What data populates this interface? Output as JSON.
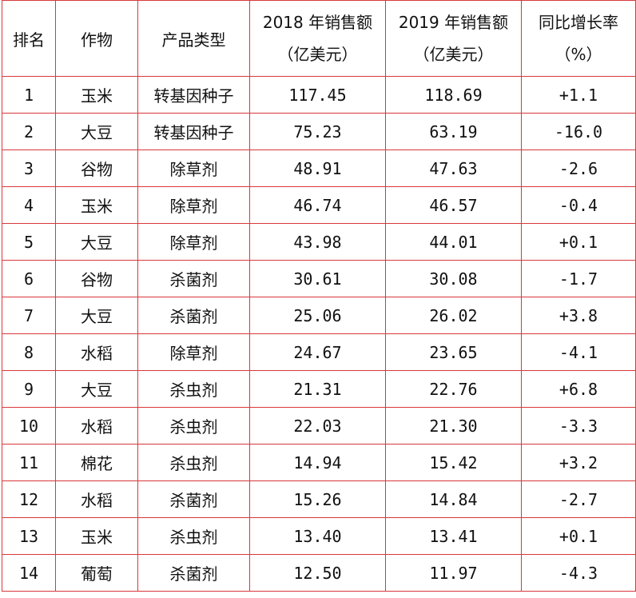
{
  "table": {
    "headers": {
      "rank": "排名",
      "crop": "作物",
      "product_type": "产品类型",
      "sales_2018_line1": "2018 年销售额",
      "sales_2018_line2": "（亿美元）",
      "sales_2019_line1": "2019 年销售额",
      "sales_2019_line2": "（亿美元）",
      "growth_line1": "同比增长率",
      "growth_line2": "（%）"
    },
    "rows": [
      {
        "rank": "1",
        "crop": "玉米",
        "type": "转基因种子",
        "s2018": "117.45",
        "s2019": "118.69",
        "growth": "+1.1"
      },
      {
        "rank": "2",
        "crop": "大豆",
        "type": "转基因种子",
        "s2018": "75.23",
        "s2019": "63.19",
        "growth": "-16.0"
      },
      {
        "rank": "3",
        "crop": "谷物",
        "type": "除草剂",
        "s2018": "48.91",
        "s2019": "47.63",
        "growth": "-2.6"
      },
      {
        "rank": "4",
        "crop": "玉米",
        "type": "除草剂",
        "s2018": "46.74",
        "s2019": "46.57",
        "growth": "-0.4"
      },
      {
        "rank": "5",
        "crop": "大豆",
        "type": "除草剂",
        "s2018": "43.98",
        "s2019": "44.01",
        "growth": "+0.1"
      },
      {
        "rank": "6",
        "crop": "谷物",
        "type": "杀菌剂",
        "s2018": "30.61",
        "s2019": "30.08",
        "growth": "-1.7"
      },
      {
        "rank": "7",
        "crop": "大豆",
        "type": "杀菌剂",
        "s2018": "25.06",
        "s2019": "26.02",
        "growth": "+3.8"
      },
      {
        "rank": "8",
        "crop": "水稻",
        "type": "除草剂",
        "s2018": "24.67",
        "s2019": "23.65",
        "growth": "-4.1"
      },
      {
        "rank": "9",
        "crop": "大豆",
        "type": "杀虫剂",
        "s2018": "21.31",
        "s2019": "22.76",
        "growth": "+6.8"
      },
      {
        "rank": "10",
        "crop": "水稻",
        "type": "杀虫剂",
        "s2018": "22.03",
        "s2019": "21.30",
        "growth": "-3.3"
      },
      {
        "rank": "11",
        "crop": "棉花",
        "type": "杀虫剂",
        "s2018": "14.94",
        "s2019": "15.42",
        "growth": "+3.2"
      },
      {
        "rank": "12",
        "crop": "水稻",
        "type": "杀菌剂",
        "s2018": "15.26",
        "s2019": "14.84",
        "growth": "-2.7"
      },
      {
        "rank": "13",
        "crop": "玉米",
        "type": "杀虫剂",
        "s2018": "13.40",
        "s2019": "13.41",
        "growth": "+0.1"
      },
      {
        "rank": "14",
        "crop": "葡萄",
        "type": "杀菌剂",
        "s2018": "12.50",
        "s2019": "11.97",
        "growth": "-4.3"
      }
    ]
  },
  "colors": {
    "border": "#d9373c",
    "text": "#111111",
    "background": "#ffffff"
  }
}
